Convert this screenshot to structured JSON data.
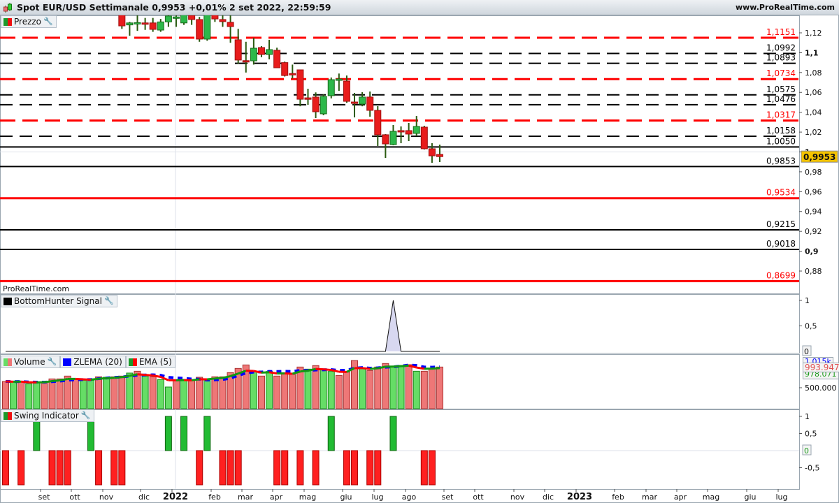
{
  "header": {
    "title": "Spot EUR/USD Settimanale 0,9953 +0,01% 2 set 2022, 22:59:59",
    "site": "www.ProRealTime.com"
  },
  "colors": {
    "up": "#2db84a",
    "down": "#e81c1c",
    "wick": "#2a5a10",
    "level_red": "#ff0000",
    "level_black": "#000000",
    "current_price_bg": "#f5c400",
    "zlema": "#0000ff",
    "ema_up": "#119911",
    "ema_down": "#ff0000"
  },
  "price_panel": {
    "label": "Prezzo",
    "watermark": "ProRealTime.com",
    "current_price": {
      "value": 0.9953,
      "label": "0,9953"
    },
    "axis_ticks": [
      {
        "v": 1.12,
        "label": "1,12"
      },
      {
        "v": 1.1,
        "label": "1,1",
        "bold": true
      },
      {
        "v": 1.08,
        "label": "1,08"
      },
      {
        "v": 1.06,
        "label": "1,06"
      },
      {
        "v": 1.04,
        "label": "1,04"
      },
      {
        "v": 1.02,
        "label": "1,02"
      },
      {
        "v": 1.0,
        "label": "1",
        "bold": true
      },
      {
        "v": 0.98,
        "label": "0,98"
      },
      {
        "v": 0.96,
        "label": "0,96"
      },
      {
        "v": 0.94,
        "label": "0,94"
      },
      {
        "v": 0.92,
        "label": "0,92"
      },
      {
        "v": 0.9,
        "label": "0,9",
        "bold": true
      },
      {
        "v": 0.88,
        "label": "0,88"
      }
    ],
    "levels": [
      {
        "v": 1.1151,
        "label": "1,1151",
        "color": "red",
        "style": "dashed"
      },
      {
        "v": 1.0992,
        "label": "1,0992",
        "color": "black",
        "style": "dashed"
      },
      {
        "v": 1.0893,
        "label": "1,0893",
        "color": "black",
        "style": "dashed"
      },
      {
        "v": 1.0734,
        "label": "1,0734",
        "color": "red",
        "style": "dashed"
      },
      {
        "v": 1.0575,
        "label": "1,0575",
        "color": "black",
        "style": "dashed"
      },
      {
        "v": 1.0476,
        "label": "1,0476",
        "color": "black",
        "style": "dashed"
      },
      {
        "v": 1.0317,
        "label": "1,0317",
        "color": "red",
        "style": "dashed"
      },
      {
        "v": 1.0158,
        "label": "1,0158",
        "color": "black",
        "style": "dashed"
      },
      {
        "v": 1.005,
        "label": "1,0050",
        "color": "black",
        "style": "solid"
      },
      {
        "v": 0.9853,
        "label": "0,9853",
        "color": "black",
        "style": "solid"
      },
      {
        "v": 0.9534,
        "label": "0,9534",
        "color": "red",
        "style": "solid"
      },
      {
        "v": 0.9215,
        "label": "0,9215",
        "color": "black",
        "style": "solid"
      },
      {
        "v": 0.9018,
        "label": "0,9018",
        "color": "black",
        "style": "solid"
      },
      {
        "v": 0.8699,
        "label": "0,8699",
        "color": "red",
        "style": "solid"
      }
    ],
    "candles": [
      [
        1.143,
        1.145,
        1.124,
        1.127
      ],
      [
        1.128,
        1.131,
        1.117,
        1.13
      ],
      [
        1.13,
        1.138,
        1.122,
        1.1303
      ],
      [
        1.13,
        1.135,
        1.123,
        1.1298
      ],
      [
        1.13,
        1.135,
        1.121,
        1.1235
      ],
      [
        1.1228,
        1.134,
        1.121,
        1.131
      ],
      [
        1.131,
        1.14,
        1.126,
        1.137
      ],
      [
        1.1355,
        1.143,
        1.126,
        1.136
      ],
      [
        1.13,
        1.143,
        1.128,
        1.138
      ],
      [
        1.1376,
        1.143,
        1.128,
        1.1334
      ],
      [
        1.1334,
        1.136,
        1.111,
        1.1137
      ],
      [
        1.1137,
        1.145,
        1.112,
        1.143
      ],
      [
        1.143,
        1.145,
        1.131,
        1.134
      ],
      [
        1.1334,
        1.138,
        1.126,
        1.1313
      ],
      [
        1.1306,
        1.1376,
        1.11,
        1.1263
      ],
      [
        1.113,
        1.124,
        1.089,
        1.0926
      ],
      [
        1.092,
        1.111,
        1.08,
        1.091
      ],
      [
        1.0918,
        1.115,
        1.088,
        1.1045
      ],
      [
        1.1052,
        1.1066,
        1.0954,
        1.0982
      ],
      [
        1.0982,
        1.113,
        1.0933,
        1.1031
      ],
      [
        1.1024,
        1.105,
        1.085,
        1.0848
      ],
      [
        1.09,
        1.091,
        1.076,
        1.077
      ],
      [
        1.079,
        1.088,
        1.074,
        1.0785
      ],
      [
        1.0827,
        1.083,
        1.046,
        1.0531
      ],
      [
        1.0545,
        1.0637,
        1.0475,
        1.053
      ],
      [
        1.0553,
        1.06,
        1.0341,
        1.0405
      ],
      [
        1.0384,
        1.058,
        1.037,
        1.056
      ],
      [
        1.0567,
        1.075,
        1.054,
        1.0728
      ],
      [
        1.073,
        1.079,
        1.0616,
        1.0735
      ],
      [
        1.0714,
        1.077,
        1.0496,
        1.051
      ],
      [
        1.0503,
        1.0595,
        1.0348,
        1.049
      ],
      [
        1.0482,
        1.0602,
        1.046,
        1.0553
      ],
      [
        1.0553,
        1.0609,
        1.0355,
        1.0419
      ],
      [
        1.0419,
        1.0461,
        1.006,
        1.0173
      ],
      [
        1.0173,
        1.018,
        0.994,
        1.0081
      ],
      [
        1.0074,
        1.0271,
        1.0067,
        1.0208
      ],
      [
        1.0215,
        1.0257,
        1.0088,
        1.021
      ],
      [
        1.0215,
        1.0292,
        1.0109,
        1.018
      ],
      [
        1.0187,
        1.0362,
        1.0158,
        1.0257
      ],
      [
        1.025,
        1.0264,
        1.0025,
        1.0032
      ],
      [
        1.0032,
        1.0088,
        0.9891,
        0.9961
      ],
      [
        0.9975,
        1.0074,
        0.9898,
        0.9953
      ]
    ]
  },
  "bottomhunter": {
    "label": "BottomHunter Signal",
    "axis_ticks": [
      {
        "v": 1,
        "label": "1"
      },
      {
        "v": 0.5,
        "label": "0,5"
      }
    ],
    "current_label": "0",
    "signal": [
      0,
      0,
      0,
      0,
      0,
      0,
      0,
      0,
      0,
      0,
      0,
      0,
      0,
      0,
      0,
      0,
      0,
      0,
      0,
      0,
      0,
      0,
      0,
      0,
      0,
      0,
      0,
      0,
      0,
      0,
      0,
      0,
      0,
      0,
      0,
      0,
      0,
      0,
      0,
      0,
      0,
      0,
      0,
      0,
      0,
      0,
      0,
      0,
      0,
      0,
      1,
      0,
      0,
      0,
      0,
      0,
      0
    ]
  },
  "volume": {
    "label": "Volume",
    "zlema_label": "ZLEMA (20)",
    "ema_label": "EMA (5)",
    "axis_ticks": [
      {
        "v": 500000,
        "label": "500.000"
      }
    ],
    "last_zlema_label": "1.015k",
    "last_volume_label": "993.947",
    "last_ema_label": "978.071",
    "bars": [
      [
        650,
        0
      ],
      [
        633,
        1
      ],
      [
        650,
        0
      ],
      [
        594,
        1
      ],
      [
        622,
        1
      ],
      [
        639,
        0
      ],
      [
        711,
        0
      ],
      [
        711,
        0
      ],
      [
        778,
        0
      ],
      [
        711,
        0
      ],
      [
        678,
        1
      ],
      [
        678,
        1
      ],
      [
        761,
        0
      ],
      [
        750,
        1
      ],
      [
        761,
        0
      ],
      [
        778,
        0
      ],
      [
        850,
        1
      ],
      [
        894,
        0
      ],
      [
        778,
        1
      ],
      [
        761,
        0
      ],
      [
        694,
        1
      ],
      [
        517,
        1
      ],
      [
        678,
        0
      ],
      [
        694,
        1
      ],
      [
        667,
        0
      ],
      [
        750,
        0
      ],
      [
        694,
        1
      ],
      [
        761,
        0
      ],
      [
        761,
        0
      ],
      [
        861,
        0
      ],
      [
        961,
        0
      ],
      [
        1044,
        0
      ],
      [
        889,
        1
      ],
      [
        778,
        0
      ],
      [
        889,
        1
      ],
      [
        778,
        0
      ],
      [
        850,
        0
      ],
      [
        817,
        0
      ],
      [
        994,
        0
      ],
      [
        944,
        1
      ],
      [
        1028,
        0
      ],
      [
        928,
        1
      ],
      [
        889,
        1
      ],
      [
        794,
        0
      ],
      [
        872,
        0
      ],
      [
        1150,
        0
      ],
      [
        967,
        1
      ],
      [
        911,
        0
      ],
      [
        994,
        0
      ],
      [
        1078,
        0
      ],
      [
        1011,
        1
      ],
      [
        1033,
        1
      ],
      [
        1050,
        0
      ],
      [
        894,
        1
      ],
      [
        894,
        0
      ],
      [
        961,
        0
      ],
      [
        994,
        0
      ]
    ]
  },
  "swing": {
    "label": "Swing Indicator",
    "axis_ticks": [
      {
        "v": 1,
        "label": "1"
      },
      {
        "v": 0.5,
        "label": "0,5"
      },
      {
        "v": -0.5,
        "label": "-0,5"
      }
    ],
    "current_label": "0",
    "values": [
      -1,
      0,
      -1,
      0,
      1,
      0,
      -1,
      -1,
      -1,
      0,
      0,
      1,
      -1,
      0,
      -1,
      -1,
      0,
      0,
      0,
      0,
      0,
      1,
      0,
      1,
      0,
      -1,
      1,
      0,
      -1,
      -1,
      -1,
      0,
      0,
      0,
      0,
      -1,
      -1,
      0,
      -1,
      0,
      -1,
      0,
      1,
      0,
      -1,
      -1,
      0,
      -1,
      -1,
      0,
      1,
      0,
      0,
      0,
      -1,
      -1,
      0
    ]
  },
  "date_axis": [
    {
      "label": "set"
    },
    {
      "label": "ott"
    },
    {
      "label": "nov"
    },
    {
      "label": "dic"
    },
    {
      "label": "2022",
      "bold": true
    },
    {
      "label": "feb"
    },
    {
      "label": "mar"
    },
    {
      "label": "apr"
    },
    {
      "label": "mag"
    },
    {
      "label": "giu"
    },
    {
      "label": "lug"
    },
    {
      "label": "ago"
    },
    {
      "label": "set"
    },
    {
      "label": "ott"
    },
    {
      "label": "nov"
    },
    {
      "label": "dic"
    },
    {
      "label": "2023",
      "bold": true
    },
    {
      "label": "feb"
    },
    {
      "label": "mar"
    },
    {
      "label": "apr"
    },
    {
      "label": "mag"
    },
    {
      "label": "giu"
    },
    {
      "label": "lug"
    }
  ]
}
